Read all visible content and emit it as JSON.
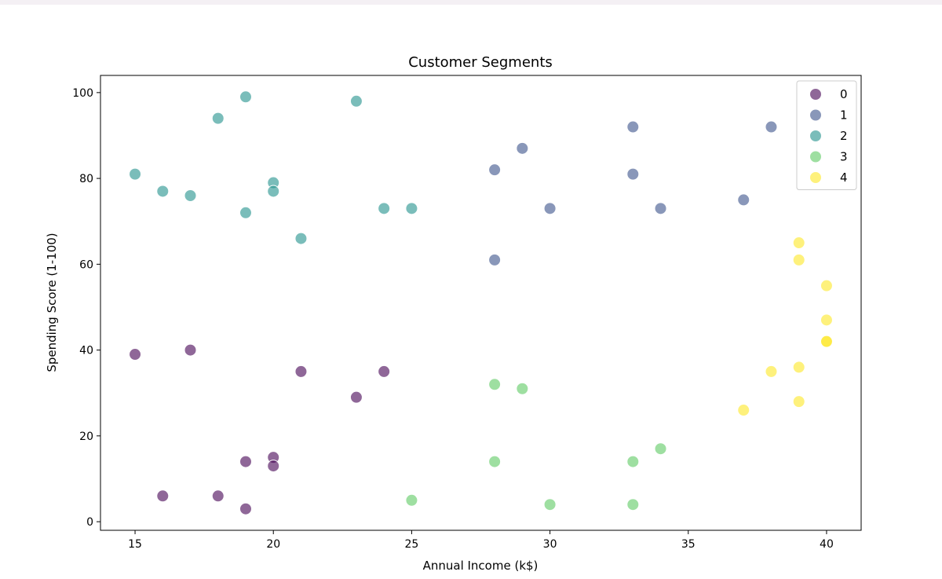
{
  "chart_data": {
    "type": "scatter",
    "title": "Customer Segments",
    "xlabel": "Annual Income (k$)",
    "ylabel": "Spending Score (1-100)",
    "xlim": [
      13.75,
      41.25
    ],
    "ylim": [
      -2,
      104
    ],
    "xticks": [
      15,
      20,
      25,
      30,
      35,
      40
    ],
    "yticks": [
      0,
      20,
      40,
      60,
      80,
      100
    ],
    "grid": false,
    "legend_position": "top-right",
    "series": [
      {
        "name": "0",
        "color": "#440154",
        "points": [
          [
            15,
            39
          ],
          [
            16,
            6
          ],
          [
            17,
            40
          ],
          [
            18,
            6
          ],
          [
            19,
            3
          ],
          [
            19,
            14
          ],
          [
            20,
            15
          ],
          [
            20,
            13
          ],
          [
            21,
            35
          ],
          [
            23,
            29
          ],
          [
            24,
            35
          ]
        ]
      },
      {
        "name": "1",
        "color": "#3b528b",
        "points": [
          [
            28,
            82
          ],
          [
            28,
            61
          ],
          [
            29,
            87
          ],
          [
            30,
            73
          ],
          [
            33,
            92
          ],
          [
            33,
            81
          ],
          [
            34,
            73
          ],
          [
            37,
            75
          ],
          [
            38,
            92
          ]
        ]
      },
      {
        "name": "2",
        "color": "#21918c",
        "points": [
          [
            15,
            81
          ],
          [
            16,
            77
          ],
          [
            17,
            76
          ],
          [
            18,
            94
          ],
          [
            19,
            99
          ],
          [
            19,
            72
          ],
          [
            20,
            79
          ],
          [
            20,
            77
          ],
          [
            21,
            66
          ],
          [
            23,
            98
          ],
          [
            24,
            73
          ],
          [
            25,
            73
          ]
        ]
      },
      {
        "name": "3",
        "color": "#5ec962",
        "points": [
          [
            25,
            5
          ],
          [
            28,
            32
          ],
          [
            28,
            14
          ],
          [
            29,
            31
          ],
          [
            30,
            4
          ],
          [
            33,
            14
          ],
          [
            33,
            4
          ],
          [
            34,
            17
          ]
        ]
      },
      {
        "name": "4",
        "color": "#fde725",
        "points": [
          [
            37,
            26
          ],
          [
            38,
            35
          ],
          [
            39,
            65
          ],
          [
            39,
            61
          ],
          [
            39,
            36
          ],
          [
            39,
            28
          ],
          [
            40,
            55
          ],
          [
            40,
            47
          ],
          [
            40,
            42
          ],
          [
            40,
            42
          ]
        ]
      }
    ]
  }
}
